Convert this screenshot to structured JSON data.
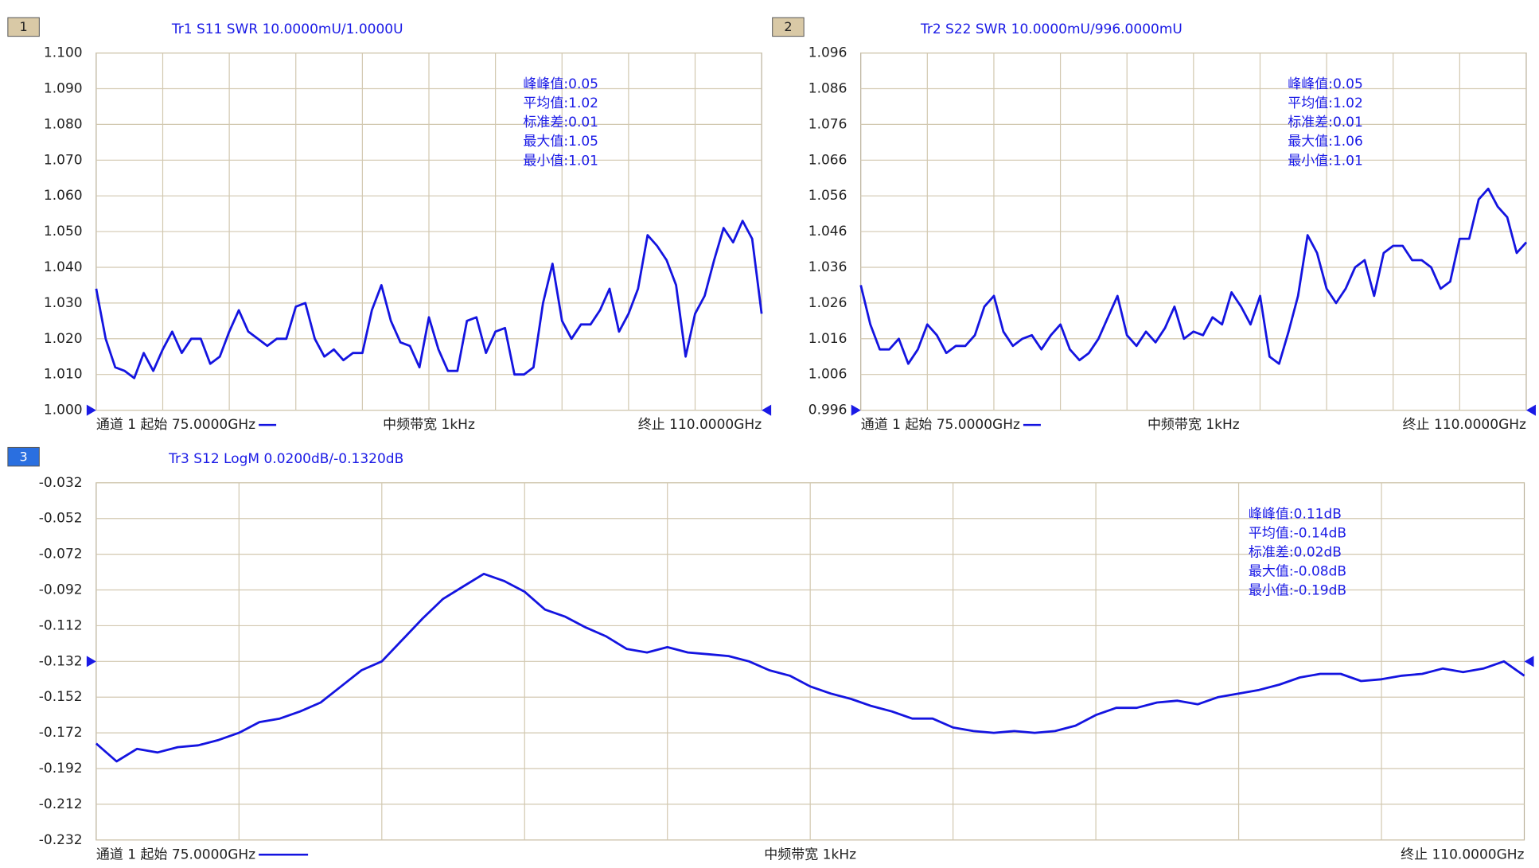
{
  "chart_data": [
    {
      "type": "line",
      "number": "1",
      "title": "Tr1 S11 SWR 10.0000mU/1.0000U",
      "annotations": [
        "峰峰值:0.05",
        "平均值:1.02",
        "标准差:0.01",
        "最大值:1.05",
        "最小值:1.01"
      ],
      "footer": {
        "start": "通道 1 起始 75.0000GHz",
        "center": "中频带宽 1kHz",
        "stop": "终止 110.0000GHz"
      },
      "xlim": [
        75,
        110
      ],
      "ylim": [
        1,
        1.1
      ],
      "yticks": [
        {
          "value": 1,
          "label": "1.000"
        },
        {
          "value": 1.01,
          "label": "1.010"
        },
        {
          "value": 1.02,
          "label": "1.020"
        },
        {
          "value": 1.03,
          "label": "1.030"
        },
        {
          "value": 1.04,
          "label": "1.040"
        },
        {
          "value": 1.05,
          "label": "1.050"
        },
        {
          "value": 1.06,
          "label": "1.060"
        },
        {
          "value": 1.07,
          "label": "1.070"
        },
        {
          "value": 1.08,
          "label": "1.080"
        },
        {
          "value": 1.09,
          "label": "1.090"
        },
        {
          "value": 1.1,
          "label": "1.100"
        }
      ],
      "grid": true,
      "x": [
        75,
        75.5,
        76,
        76.5,
        77,
        77.5,
        78,
        78.5,
        79,
        79.5,
        80,
        80.5,
        81,
        81.5,
        82,
        82.5,
        83,
        83.5,
        84,
        84.5,
        85,
        85.5,
        86,
        86.5,
        87,
        87.5,
        88,
        88.5,
        89,
        89.5,
        90,
        90.5,
        91,
        91.5,
        92,
        92.5,
        93,
        93.5,
        94,
        94.5,
        95,
        95.5,
        96,
        96.5,
        97,
        97.5,
        98,
        98.5,
        99,
        99.5,
        100,
        100.5,
        101,
        101.5,
        102,
        102.5,
        103,
        103.5,
        104,
        104.5,
        105,
        105.5,
        106,
        106.5,
        107,
        107.5,
        108,
        108.5,
        109,
        109.5,
        110
      ],
      "series": [
        {
          "name": "S11",
          "color": "#1414e0",
          "values": [
            1.034,
            1.02,
            1.012,
            1.011,
            1.009,
            1.016,
            1.011,
            1.017,
            1.022,
            1.016,
            1.02,
            1.02,
            1.013,
            1.015,
            1.022,
            1.028,
            1.022,
            1.02,
            1.018,
            1.02,
            1.02,
            1.029,
            1.03,
            1.02,
            1.015,
            1.017,
            1.014,
            1.016,
            1.016,
            1.028,
            1.035,
            1.025,
            1.019,
            1.018,
            1.012,
            1.026,
            1.017,
            1.011,
            1.011,
            1.025,
            1.026,
            1.016,
            1.022,
            1.023,
            1.01,
            1.01,
            1.012,
            1.03,
            1.041,
            1.025,
            1.02,
            1.024,
            1.024,
            1.028,
            1.034,
            1.022,
            1.027,
            1.034,
            1.049,
            1.046,
            1.042,
            1.035,
            1.015,
            1.027,
            1.032,
            1.042,
            1.051,
            1.047,
            1.053,
            1.048,
            1.027
          ]
        }
      ]
    },
    {
      "type": "line",
      "number": "2",
      "title": "Tr2 S22 SWR 10.0000mU/996.0000mU",
      "annotations": [
        "峰峰值:0.05",
        "平均值:1.02",
        "标准差:0.01",
        "最大值:1.06",
        "最小值:1.01"
      ],
      "footer": {
        "start": "通道 1 起始 75.0000GHz",
        "center": "中频带宽 1kHz",
        "stop": "终止 110.0000GHz"
      },
      "xlim": [
        75,
        110
      ],
      "ylim": [
        0.996,
        1.096
      ],
      "yticks": [
        0.996,
        1.006,
        1.016,
        1.026,
        1.036,
        1.046,
        1.056,
        1.066,
        1.076,
        1.086,
        1.096
      ],
      "grid": true,
      "x": [
        75,
        75.5,
        76,
        76.5,
        77,
        77.5,
        78,
        78.5,
        79,
        79.5,
        80,
        80.5,
        81,
        81.5,
        82,
        82.5,
        83,
        83.5,
        84,
        84.5,
        85,
        85.5,
        86,
        86.5,
        87,
        87.5,
        88,
        88.5,
        89,
        89.5,
        90,
        90.5,
        91,
        91.5,
        92,
        92.5,
        93,
        93.5,
        94,
        94.5,
        95,
        95.5,
        96,
        96.5,
        97,
        97.5,
        98,
        98.5,
        99,
        99.5,
        100,
        100.5,
        101,
        101.5,
        102,
        102.5,
        103,
        103.5,
        104,
        104.5,
        105,
        105.5,
        106,
        106.5,
        107,
        107.5,
        108,
        108.5,
        109,
        109.5,
        110
      ],
      "series": [
        {
          "name": "S22",
          "color": "#1414e0",
          "values": [
            1.031,
            1.02,
            1.013,
            1.013,
            1.016,
            1.009,
            1.013,
            1.02,
            1.017,
            1.012,
            1.014,
            1.014,
            1.017,
            1.025,
            1.028,
            1.018,
            1.014,
            1.016,
            1.017,
            1.013,
            1.017,
            1.02,
            1.013,
            1.01,
            1.012,
            1.016,
            1.022,
            1.028,
            1.017,
            1.014,
            1.018,
            1.015,
            1.019,
            1.025,
            1.016,
            1.018,
            1.017,
            1.022,
            1.02,
            1.029,
            1.025,
            1.02,
            1.028,
            1.011,
            1.009,
            1.018,
            1.028,
            1.045,
            1.04,
            1.03,
            1.026,
            1.03,
            1.036,
            1.038,
            1.028,
            1.04,
            1.042,
            1.042,
            1.038,
            1.038,
            1.036,
            1.03,
            1.032,
            1.044,
            1.044,
            1.055,
            1.058,
            1.053,
            1.05,
            1.04,
            1.043
          ]
        }
      ]
    },
    {
      "type": "line",
      "number": "3",
      "title": "Tr3 S12 LogM 0.0200dB/-0.1320dB",
      "annotations": [
        "峰峰值:0.11dB",
        "平均值:-0.14dB",
        "标准差:0.02dB",
        "最大值:-0.08dB",
        "最小值:-0.19dB"
      ],
      "footer": {
        "start": "通道 1 起始 75.0000GHz",
        "center": "中频带宽 1kHz",
        "stop": "终止 110.0000GHz"
      },
      "xlim": [
        75,
        110
      ],
      "ylim": [
        -0.232,
        -0.032
      ],
      "yticks": [
        -0.232,
        -0.212,
        -0.192,
        -0.172,
        -0.152,
        -0.132,
        -0.112,
        -0.092,
        -0.072,
        -0.052,
        -0.032
      ],
      "grid": true,
      "x": [
        75,
        75.5,
        76,
        76.5,
        77,
        77.5,
        78,
        78.5,
        79,
        79.5,
        80,
        80.5,
        81,
        81.5,
        82,
        82.5,
        83,
        83.5,
        84,
        84.5,
        85,
        85.5,
        86,
        86.5,
        87,
        87.5,
        88,
        88.5,
        89,
        89.5,
        90,
        90.5,
        91,
        91.5,
        92,
        92.5,
        93,
        93.5,
        94,
        94.5,
        95,
        95.5,
        96,
        96.5,
        97,
        97.5,
        98,
        98.5,
        99,
        99.5,
        100,
        100.5,
        101,
        101.5,
        102,
        102.5,
        103,
        103.5,
        104,
        104.5,
        105,
        105.5,
        106,
        106.5,
        107,
        107.5,
        108,
        108.5,
        109,
        109.5,
        110
      ],
      "series": [
        {
          "name": "S12",
          "color": "#1414e0",
          "values": [
            -0.178,
            -0.188,
            -0.181,
            -0.183,
            -0.18,
            -0.179,
            -0.176,
            -0.172,
            -0.166,
            -0.164,
            -0.16,
            -0.155,
            -0.146,
            -0.137,
            -0.132,
            -0.12,
            -0.108,
            -0.097,
            -0.09,
            -0.083,
            -0.087,
            -0.093,
            -0.103,
            -0.107,
            -0.113,
            -0.118,
            -0.125,
            -0.127,
            -0.124,
            -0.127,
            -0.128,
            -0.129,
            -0.132,
            -0.137,
            -0.14,
            -0.146,
            -0.15,
            -0.153,
            -0.157,
            -0.16,
            -0.164,
            -0.164,
            -0.169,
            -0.171,
            -0.172,
            -0.171,
            -0.172,
            -0.171,
            -0.168,
            -0.162,
            -0.158,
            -0.158,
            -0.155,
            -0.154,
            -0.156,
            -0.152,
            -0.15,
            -0.148,
            -0.145,
            -0.141,
            -0.139,
            -0.139,
            -0.143,
            -0.142,
            -0.14,
            -0.139,
            -0.136,
            -0.138,
            -0.136,
            -0.132,
            -0.14
          ]
        }
      ]
    }
  ]
}
